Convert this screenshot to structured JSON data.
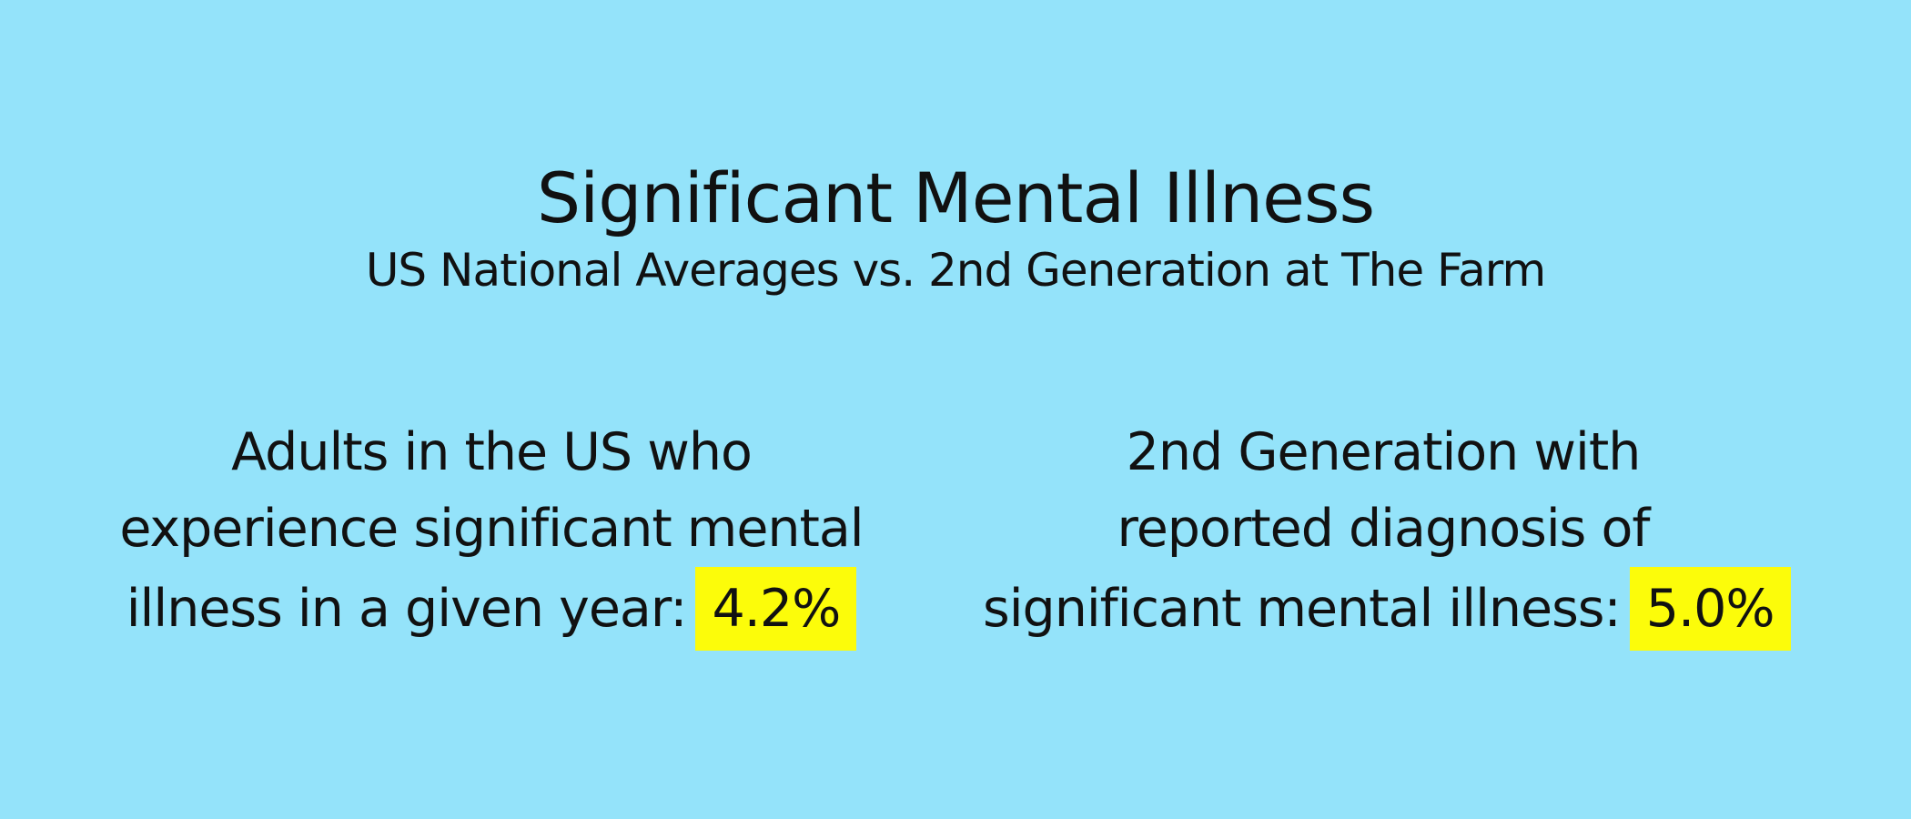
{
  "header": {
    "title": "Significant Mental Illness",
    "subtitle": "US National Averages vs. 2nd Generation at The Farm"
  },
  "stats": [
    {
      "lines": [
        "Adults in the US who",
        "experience significant mental",
        "illness in a given year:"
      ],
      "value": "4.2%"
    },
    {
      "lines": [
        "2nd Generation with",
        "reported diagnosis of",
        "significant mental illness:"
      ],
      "value": "5.0%"
    }
  ],
  "colors": {
    "background": "#94e3fa",
    "highlight": "#fcfc0a",
    "text": "#111111"
  }
}
